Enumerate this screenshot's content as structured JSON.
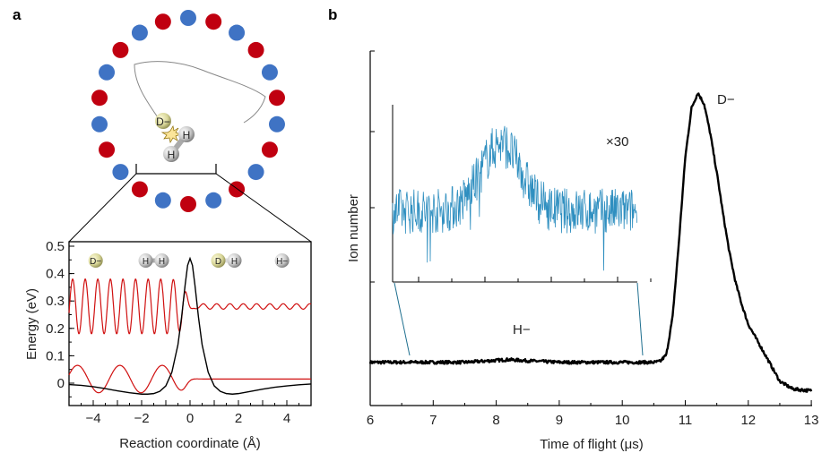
{
  "panel_labels": [
    "a",
    "b"
  ],
  "colors": {
    "cation_red": "#c00010",
    "cation_blue": "#3f73c4",
    "wave_red": "#d01010",
    "potential": "#000000",
    "inset_trace": "#2f8fc0",
    "trace": "#000000"
  },
  "ring": {
    "ion_count": 22,
    "molecule_labels": {
      "anion": "D−",
      "h1": "H",
      "h2": "H"
    }
  },
  "chart_data": [
    {
      "type": "line",
      "panel": "a",
      "xlabel": "Reaction coordinate (Å)",
      "ylabel": "Energy (eV)",
      "xlim": [
        -5,
        5
      ],
      "ylim": [
        -0.08,
        0.5
      ],
      "xticks": [
        -4,
        -2,
        0,
        2,
        4
      ],
      "xtick_labels": [
        "−4",
        "−2",
        "0",
        "2",
        "4"
      ],
      "yticks": [
        0,
        0.1,
        0.2,
        0.3,
        0.4,
        0.5
      ],
      "ytick_labels": [
        "0",
        "0.1",
        "0.2",
        "0.3",
        "0.4",
        "0.5"
      ],
      "species_labels": [
        {
          "x": -3.9,
          "atoms": [
            "D−"
          ]
        },
        {
          "x": -1.5,
          "atoms": [
            "H",
            "H"
          ]
        },
        {
          "x": 1.5,
          "atoms": [
            "D",
            "H"
          ]
        },
        {
          "x": 3.8,
          "atoms": [
            "H−"
          ]
        }
      ],
      "potential": {
        "name": "potential energy",
        "x": [
          -5,
          -4.5,
          -4,
          -3.5,
          -3,
          -2.5,
          -2,
          -1.75,
          -1.5,
          -1.25,
          -1,
          -0.75,
          -0.5,
          -0.35,
          -0.2,
          -0.1,
          0,
          0.1,
          0.2,
          0.35,
          0.5,
          0.75,
          1,
          1.25,
          1.5,
          1.75,
          2,
          2.5,
          3,
          3.5,
          4,
          4.5,
          5
        ],
        "y": [
          -0.005,
          -0.008,
          -0.013,
          -0.02,
          -0.028,
          -0.035,
          -0.04,
          -0.04,
          -0.038,
          -0.03,
          -0.01,
          0.04,
          0.14,
          0.24,
          0.36,
          0.43,
          0.455,
          0.43,
          0.36,
          0.24,
          0.14,
          0.04,
          -0.01,
          -0.03,
          -0.038,
          -0.04,
          -0.038,
          -0.03,
          -0.022,
          -0.015,
          -0.01,
          -0.006,
          -0.003
        ]
      },
      "wavefunctions": [
        {
          "name": "excited vibrational wavefunction",
          "energy_left": 0.28,
          "amplitude_left": 0.1,
          "period_left": 0.52,
          "energy_right": 0.28,
          "amplitude_right": 0.01,
          "period_right": 0.55,
          "phase_left": -4.85
        },
        {
          "name": "ground vibrational wavefunction",
          "energy_left": 0.015,
          "amplitude_left": 0.05,
          "period_left": 1.75,
          "energy_right": 0.015,
          "amplitude_right": 0.0,
          "period_right": 1.0,
          "phase_left": -2.9
        }
      ]
    },
    {
      "type": "line",
      "panel": "b",
      "xlabel": "Time of flight (μs)",
      "ylabel": "Ion number",
      "xlim": [
        6,
        13
      ],
      "ylim": [
        0,
        1
      ],
      "xticks": [
        6,
        7,
        8,
        9,
        10,
        11,
        12,
        13
      ],
      "xtick_labels": [
        "6",
        "7",
        "8",
        "9",
        "10",
        "11",
        "12",
        "13"
      ],
      "annotations": {
        "peak_main": "D−",
        "peak_minor": "H−",
        "inset_scale": "×30"
      },
      "series": [
        {
          "name": "D− / H− time-of-flight trace",
          "x": [
            6,
            7,
            7.5,
            8,
            8.2,
            8.5,
            9,
            9.5,
            10,
            10.5,
            10.6,
            10.7,
            10.8,
            10.9,
            11,
            11.1,
            11.2,
            11.3,
            11.4,
            11.5,
            11.6,
            11.7,
            11.8,
            11.9,
            12,
            12.1,
            12.2,
            12.3,
            12.4,
            12.5,
            12.6,
            12.7,
            12.8,
            13
          ],
          "y": [
            0.18,
            0.18,
            0.18,
            0.185,
            0.187,
            0.184,
            0.18,
            0.18,
            0.18,
            0.18,
            0.182,
            0.2,
            0.3,
            0.5,
            0.72,
            0.85,
            0.89,
            0.86,
            0.78,
            0.68,
            0.57,
            0.47,
            0.39,
            0.33,
            0.28,
            0.25,
            0.22,
            0.19,
            0.16,
            0.13,
            0.12,
            0.11,
            0.108,
            0.105
          ]
        }
      ],
      "inset": {
        "name": "H− region magnified ×30",
        "xlim": [
          6.35,
          10.3
        ],
        "ylim": [
          0,
          1
        ],
        "baseline": 0.4,
        "peak_center": 8.1,
        "peak_height": 0.78,
        "peak_width": 0.45,
        "noise_amplitude": 0.1
      }
    }
  ]
}
